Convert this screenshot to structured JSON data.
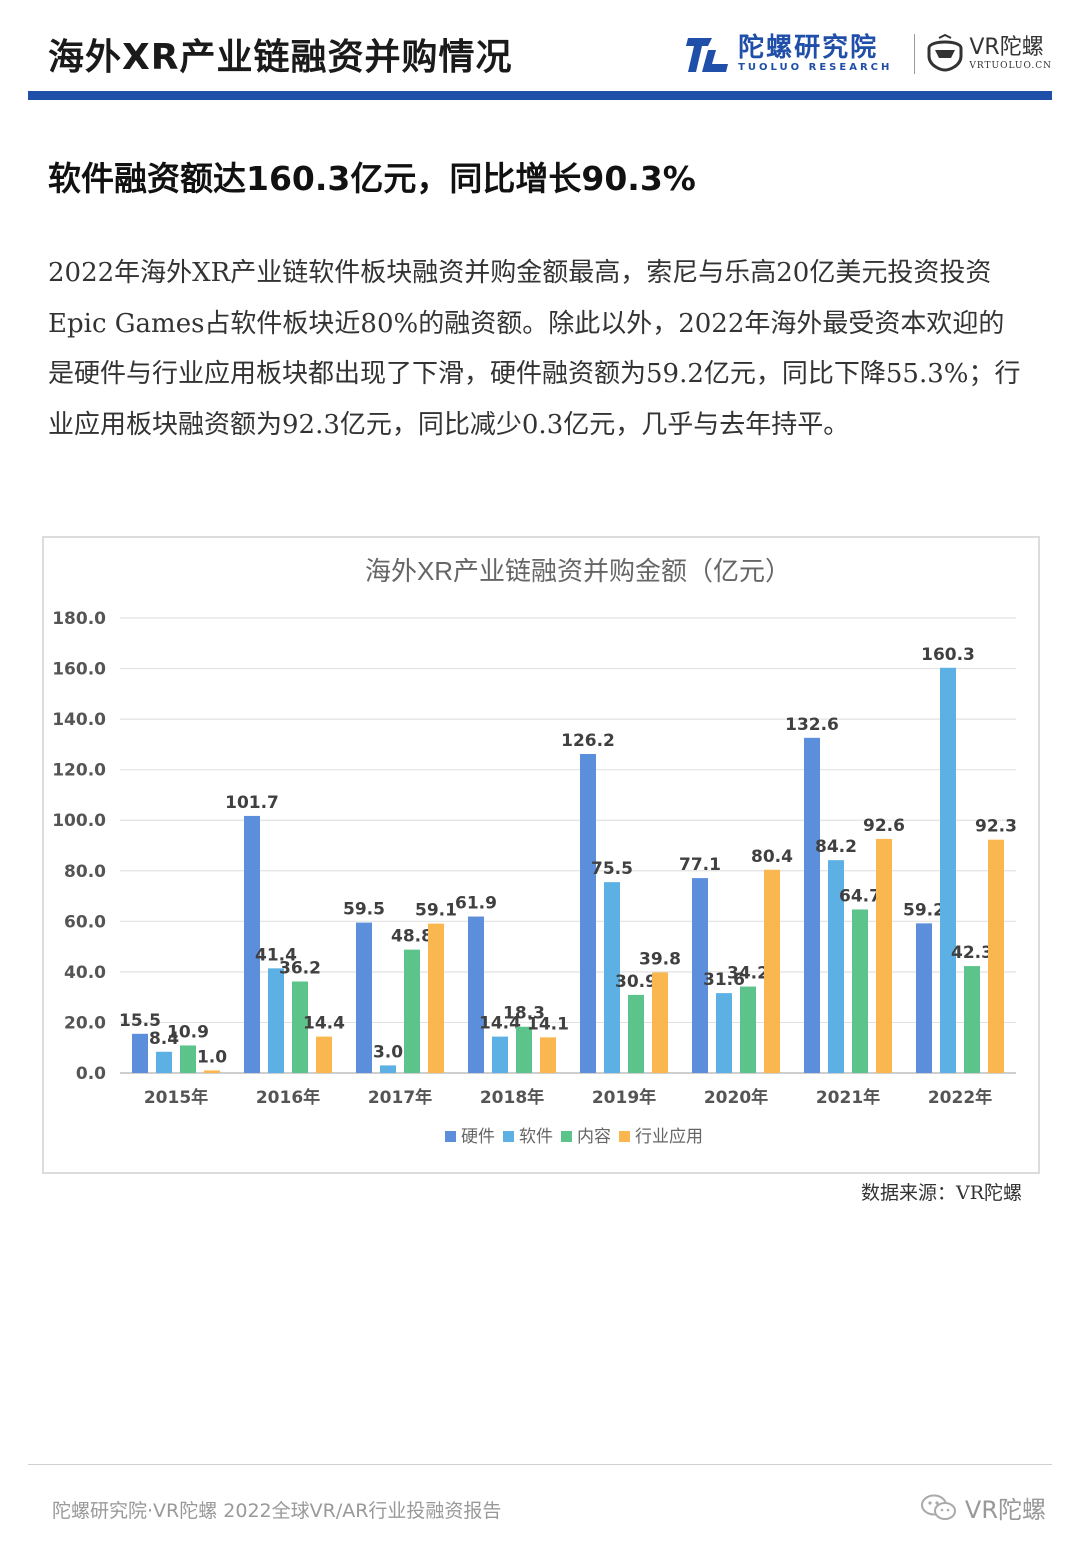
{
  "header": {
    "title": "海外XR产业链融资并购情况",
    "brand_tl_cn": "陀螺研究院",
    "brand_tl_en": "TUOLUO RESEARCH",
    "brand_vr_cn": "VR陀螺",
    "brand_vr_en": "VRTUOLUO.CN",
    "accent_color": "#1f4fa8"
  },
  "section": {
    "heading": "软件融资额达160.3亿元，同比增长90.3%",
    "paragraph": "2022年海外XR产业链软件板块融资并购金额最高，索尼与乐高20亿美元投资投资Epic Games占软件板块近80%的融资额。除此以外，2022年海外最受资本欢迎的是硬件与行业应用板块都出现了下滑，硬件融资额为59.2亿元，同比下降55.3%；行业应用板块融资额为92.3亿元，同比减少0.3亿元，几乎与去年持平。"
  },
  "chart_data": {
    "type": "bar",
    "title": "海外XR产业链融资并购金额（亿元）",
    "categories": [
      "2015年",
      "2016年",
      "2017年",
      "2018年",
      "2019年",
      "2020年",
      "2021年",
      "2022年"
    ],
    "series": [
      {
        "name": "硬件",
        "color": "#5b8fdc",
        "values": [
          15.5,
          101.7,
          59.5,
          61.9,
          126.2,
          77.1,
          132.6,
          59.2
        ]
      },
      {
        "name": "软件",
        "color": "#5cb0e4",
        "values": [
          8.4,
          41.4,
          3.0,
          14.4,
          75.5,
          31.6,
          84.2,
          160.3
        ]
      },
      {
        "name": "内容",
        "color": "#5cc48a",
        "values": [
          10.9,
          36.2,
          48.8,
          18.3,
          30.9,
          34.2,
          64.7,
          42.3
        ]
      },
      {
        "name": "行业应用",
        "color": "#fbb74f",
        "values": [
          1.0,
          14.4,
          59.1,
          14.1,
          39.8,
          80.4,
          92.6,
          92.3
        ]
      }
    ],
    "ylim": [
      0,
      180
    ],
    "yticks": [
      "0.0",
      "20.0",
      "40.0",
      "60.0",
      "80.0",
      "100.0",
      "120.0",
      "140.0",
      "160.0",
      "180.0"
    ],
    "xlabel": "",
    "ylabel": "",
    "grid": true,
    "legend": "bottom-center"
  },
  "source_note": "数据来源：VR陀螺",
  "footer": {
    "text": "陀螺研究院·VR陀螺 2022全球VR/AR行业投融资报告",
    "brand": "VR陀螺"
  }
}
